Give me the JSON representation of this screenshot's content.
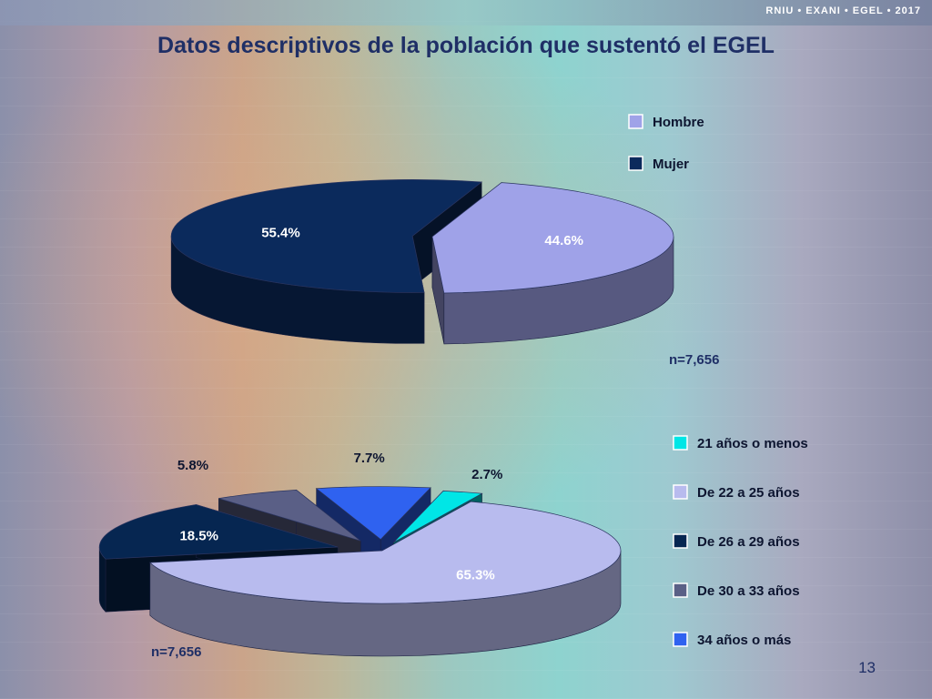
{
  "brand": "RNIU • EXANI • EGEL • 2017",
  "title": "Datos descriptivos de la población que sustentó el EGEL",
  "page_number": "13",
  "chart_data": [
    {
      "type": "pie",
      "style": "3d-exploded",
      "categories": [
        "Hombre",
        "Mujer"
      ],
      "values": [
        44.6,
        55.4
      ],
      "labels": [
        "44.6%",
        "55.4%"
      ],
      "colors": [
        "#9fa2e8",
        "#0b2a5c"
      ],
      "note": "n=7,656",
      "legend": "right"
    },
    {
      "type": "pie",
      "style": "3d-exploded",
      "categories": [
        "21 años o menos",
        "De 22 a 25 años",
        "De 26 a 29 años",
        "De 30 a 33 años",
        "34 años o más"
      ],
      "values": [
        2.7,
        65.3,
        18.5,
        5.8,
        7.7
      ],
      "labels": [
        "2.7%",
        "65.3%",
        "18.5%",
        "5.8%",
        "7.7%"
      ],
      "colors": [
        "#00e6e6",
        "#b8bbee",
        "#062651",
        "#5a5f86",
        "#2f62f0"
      ],
      "note": "n=7,656",
      "legend": "right"
    }
  ]
}
